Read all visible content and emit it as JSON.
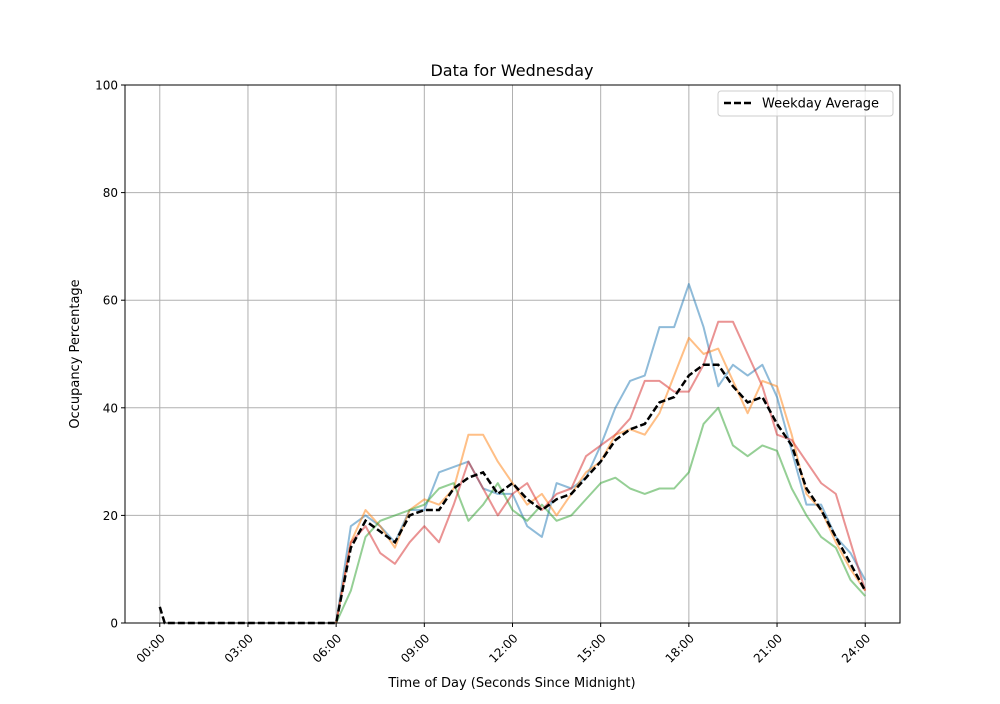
{
  "chart_data": {
    "type": "line",
    "title": "Data for Wednesday",
    "xlabel": "Time of Day (Seconds Since Midnight)",
    "ylabel": "Occupancy Percentage",
    "ylim": [
      0,
      100
    ],
    "xlim": [
      "-01:11",
      "25:11"
    ],
    "yticks": [
      0,
      20,
      40,
      60,
      80,
      100
    ],
    "xticks": [
      "00:00",
      "03:00",
      "06:00",
      "09:00",
      "12:00",
      "15:00",
      "18:00",
      "21:00",
      "24:00"
    ],
    "grid": true,
    "legend_position": "top-right",
    "x": [
      "06:00",
      "06:30",
      "07:00",
      "07:30",
      "08:00",
      "08:30",
      "09:00",
      "09:30",
      "10:00",
      "10:30",
      "11:00",
      "11:30",
      "12:00",
      "12:30",
      "13:00",
      "13:30",
      "14:00",
      "14:30",
      "15:00",
      "15:30",
      "16:00",
      "16:30",
      "17:00",
      "17:30",
      "18:00",
      "18:30",
      "19:00",
      "19:30",
      "20:00",
      "20:30",
      "21:00",
      "21:30",
      "22:00",
      "22:30",
      "23:00",
      "23:30",
      "24:00"
    ],
    "series": [
      {
        "color": "#1f77b4",
        "values": [
          0,
          18,
          20,
          18,
          15,
          21,
          21,
          28,
          29,
          30,
          25,
          24,
          24,
          18,
          16,
          26,
          25,
          27,
          33,
          40,
          45,
          46,
          55,
          55,
          63,
          55,
          44,
          48,
          46,
          48,
          42,
          32,
          22,
          22,
          16,
          13,
          8
        ]
      },
      {
        "color": "#ff7f0e",
        "values": [
          0,
          15,
          21,
          18,
          14,
          21,
          23,
          22,
          25,
          35,
          35,
          30,
          26,
          22,
          24,
          20,
          24,
          28,
          30,
          35,
          36,
          35,
          39,
          46,
          53,
          50,
          51,
          45,
          39,
          45,
          44,
          35,
          24,
          21,
          15,
          10,
          6
        ]
      },
      {
        "color": "#2ca02c",
        "values": [
          0,
          6,
          16,
          19,
          20,
          21,
          22,
          25,
          26,
          19,
          22,
          26,
          21,
          19,
          22,
          19,
          20,
          23,
          26,
          27,
          25,
          24,
          25,
          25,
          28,
          37,
          40,
          33,
          31,
          33,
          32,
          25,
          20,
          16,
          14,
          8,
          5
        ]
      },
      {
        "color": "#d62728",
        "values": [
          0,
          15,
          18,
          13,
          11,
          15,
          18,
          15,
          22,
          30,
          25,
          20,
          24,
          26,
          21,
          24,
          25,
          31,
          33,
          35,
          38,
          45,
          45,
          43,
          43,
          48,
          56,
          56,
          50,
          44,
          35,
          34,
          30,
          26,
          24,
          15,
          6
        ]
      }
    ],
    "average": {
      "name": "Weekday Average",
      "color": "#000000",
      "x": [
        "00:00",
        "00:10",
        "01:00",
        "02:00",
        "03:00",
        "04:00",
        "05:00",
        "05:50",
        "06:00",
        "06:30",
        "07:00",
        "07:30",
        "08:00",
        "08:30",
        "09:00",
        "09:30",
        "10:00",
        "10:30",
        "11:00",
        "11:30",
        "12:00",
        "12:30",
        "13:00",
        "13:30",
        "14:00",
        "14:30",
        "15:00",
        "15:30",
        "16:00",
        "16:30",
        "17:00",
        "17:30",
        "18:00",
        "18:30",
        "19:00",
        "19:30",
        "20:00",
        "20:30",
        "21:00",
        "21:30",
        "22:00",
        "22:30",
        "23:00",
        "23:30",
        "24:00"
      ],
      "values": [
        3,
        0,
        0,
        0,
        0,
        0,
        0,
        0,
        0,
        14,
        19,
        17,
        15,
        20,
        21,
        21,
        25,
        27,
        28,
        24,
        26,
        23,
        21,
        23,
        24,
        27,
        30,
        34,
        36,
        37,
        41,
        42,
        46,
        48,
        48,
        44,
        41,
        42,
        37,
        33,
        25,
        21,
        16,
        11,
        6
      ]
    }
  }
}
